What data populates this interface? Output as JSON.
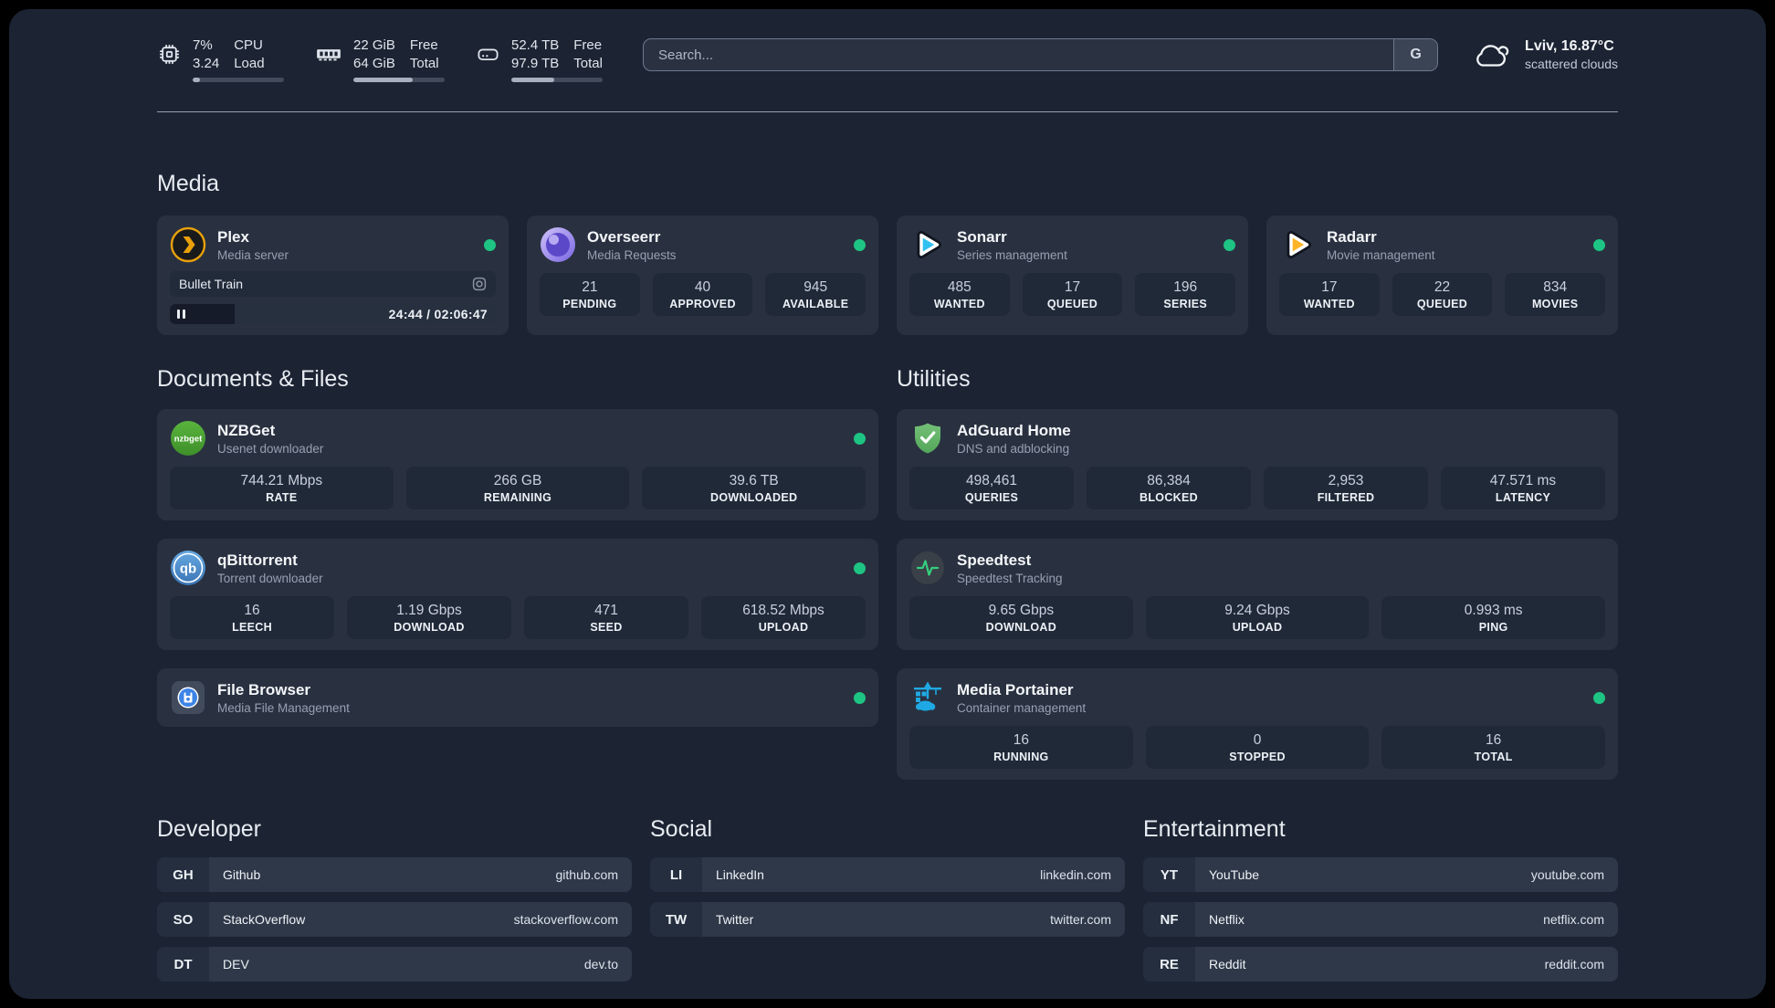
{
  "topbar": {
    "metrics": [
      {
        "icon": "cpu-icon",
        "values": [
          "7%",
          "3.24"
        ],
        "labels": [
          "CPU",
          "Load"
        ],
        "progress": "8%"
      },
      {
        "icon": "ram-icon",
        "values": [
          "22 GiB",
          "64 GiB"
        ],
        "labels": [
          "Free",
          "Total"
        ],
        "progress": "65%"
      },
      {
        "icon": "disk-icon",
        "values": [
          "52.4 TB",
          "97.9 TB"
        ],
        "labels": [
          "Free",
          "Total"
        ],
        "progress": "47%"
      }
    ],
    "search": {
      "placeholder": "Search...",
      "engine_label": "G"
    },
    "weather": {
      "title": "Lviv, 16.87°C",
      "subtitle": "scattered clouds"
    }
  },
  "sections": {
    "media": {
      "title": "Media",
      "plex": {
        "name": "Plex",
        "desc": "Media server",
        "now_playing": "Bullet Train",
        "time": "24:44 / 02:06:47",
        "progress": "20%"
      },
      "overseerr": {
        "name": "Overseerr",
        "desc": "Media Requests",
        "stats": [
          {
            "value": "21",
            "label": "PENDING"
          },
          {
            "value": "40",
            "label": "APPROVED"
          },
          {
            "value": "945",
            "label": "AVAILABLE"
          }
        ]
      },
      "sonarr": {
        "name": "Sonarr",
        "desc": "Series management",
        "stats": [
          {
            "value": "485",
            "label": "WANTED"
          },
          {
            "value": "17",
            "label": "QUEUED"
          },
          {
            "value": "196",
            "label": "SERIES"
          }
        ]
      },
      "radarr": {
        "name": "Radarr",
        "desc": "Movie management",
        "stats": [
          {
            "value": "17",
            "label": "WANTED"
          },
          {
            "value": "22",
            "label": "QUEUED"
          },
          {
            "value": "834",
            "label": "MOVIES"
          }
        ]
      }
    },
    "documents": {
      "title": "Documents & Files",
      "nzbget": {
        "name": "NZBGet",
        "desc": "Usenet downloader",
        "stats": [
          {
            "value": "744.21 Mbps",
            "label": "RATE"
          },
          {
            "value": "266 GB",
            "label": "REMAINING"
          },
          {
            "value": "39.6 TB",
            "label": "DOWNLOADED"
          }
        ]
      },
      "qbittorrent": {
        "name": "qBittorrent",
        "desc": "Torrent downloader",
        "stats": [
          {
            "value": "16",
            "label": "LEECH"
          },
          {
            "value": "1.19 Gbps",
            "label": "DOWNLOAD"
          },
          {
            "value": "471",
            "label": "SEED"
          },
          {
            "value": "618.52 Mbps",
            "label": "UPLOAD"
          }
        ]
      },
      "filebrowser": {
        "name": "File Browser",
        "desc": "Media File Management"
      }
    },
    "utilities": {
      "title": "Utilities",
      "adguard": {
        "name": "AdGuard Home",
        "desc": "DNS and adblocking",
        "stats": [
          {
            "value": "498,461",
            "label": "QUERIES"
          },
          {
            "value": "86,384",
            "label": "BLOCKED"
          },
          {
            "value": "2,953",
            "label": "FILTERED"
          },
          {
            "value": "47.571 ms",
            "label": "LATENCY"
          }
        ]
      },
      "speedtest": {
        "name": "Speedtest",
        "desc": "Speedtest Tracking",
        "stats": [
          {
            "value": "9.65 Gbps",
            "label": "DOWNLOAD"
          },
          {
            "value": "9.24 Gbps",
            "label": "UPLOAD"
          },
          {
            "value": "0.993 ms",
            "label": "PING"
          }
        ]
      },
      "portainer": {
        "name": "Media Portainer",
        "desc": "Container management",
        "stats": [
          {
            "value": "16",
            "label": "RUNNING"
          },
          {
            "value": "0",
            "label": "STOPPED"
          },
          {
            "value": "16",
            "label": "TOTAL"
          }
        ]
      }
    },
    "developer": {
      "title": "Developer",
      "links": [
        {
          "abbr": "GH",
          "name": "Github",
          "url": "github.com"
        },
        {
          "abbr": "SO",
          "name": "StackOverflow",
          "url": "stackoverflow.com"
        },
        {
          "abbr": "DT",
          "name": "DEV",
          "url": "dev.to"
        }
      ]
    },
    "social": {
      "title": "Social",
      "links": [
        {
          "abbr": "LI",
          "name": "LinkedIn",
          "url": "linkedin.com"
        },
        {
          "abbr": "TW",
          "name": "Twitter",
          "url": "twitter.com"
        }
      ]
    },
    "entertainment": {
      "title": "Entertainment",
      "links": [
        {
          "abbr": "YT",
          "name": "YouTube",
          "url": "youtube.com"
        },
        {
          "abbr": "NF",
          "name": "Netflix",
          "url": "netflix.com"
        },
        {
          "abbr": "RE",
          "name": "Reddit",
          "url": "reddit.com"
        }
      ]
    }
  },
  "icon_badges": {
    "nzbget": "nzbget",
    "qbittorrent": "qb"
  },
  "colors": {
    "status_online": "#1ec483",
    "plex_gold": "#e8a00b",
    "sonarr_cyan": "#2fc1f0",
    "radarr_gold": "#ffb526",
    "portainer_blue": "#1fa9e4"
  }
}
